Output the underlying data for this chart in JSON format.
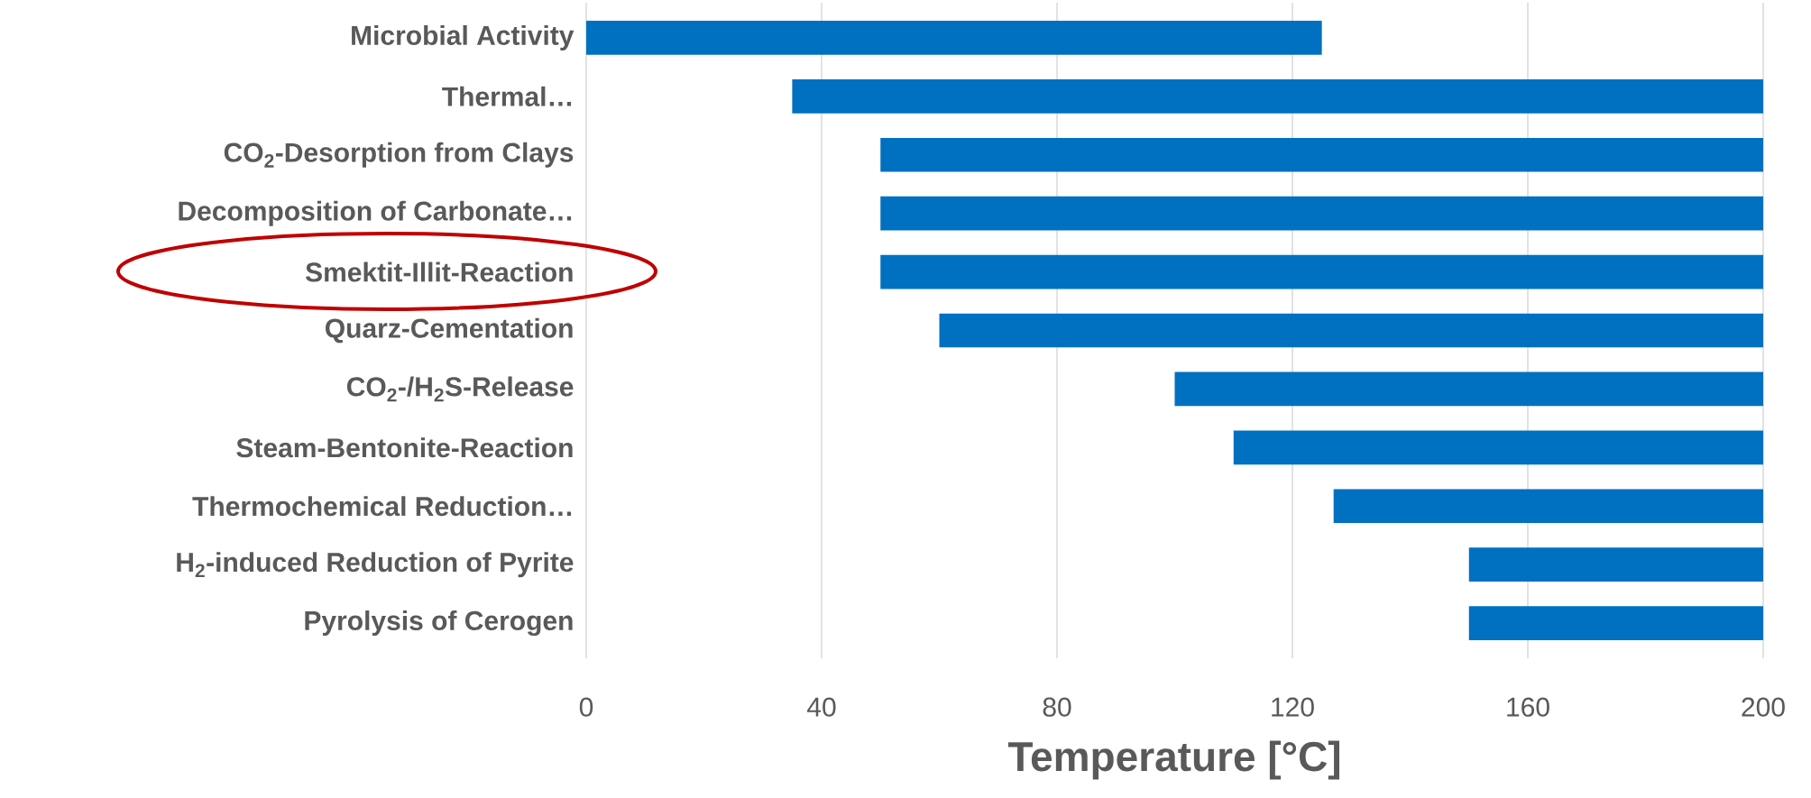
{
  "chart_data": {
    "type": "bar",
    "orientation": "horizontal",
    "categories": [
      "Microbial Activity",
      "Thermal…",
      "CO$_{2}$-Desorption from Clays",
      "Decomposition of Carbonate…",
      "Smektit-Illit-Reaction",
      "Quarz-Cementation",
      "CO$_{2}$-/H$_{2}$S-Release",
      "Steam-Bentonite-Reaction",
      "Thermochemical Reduction…",
      "H$_{2}$-induced Reduction of Pyrite",
      "Pyrolysis of Cerogen"
    ],
    "base": [
      0,
      35,
      50,
      50,
      50,
      60,
      100,
      110,
      127,
      150,
      150
    ],
    "values": [
      125,
      165,
      150,
      150,
      150,
      140,
      100,
      90,
      73,
      50,
      50
    ],
    "color": "#0070c0",
    "xlabel": "Temperature [°C]",
    "xlim": [
      0,
      200
    ],
    "xticks": [
      0,
      40,
      80,
      120,
      160,
      200
    ],
    "grid": "x"
  }
}
